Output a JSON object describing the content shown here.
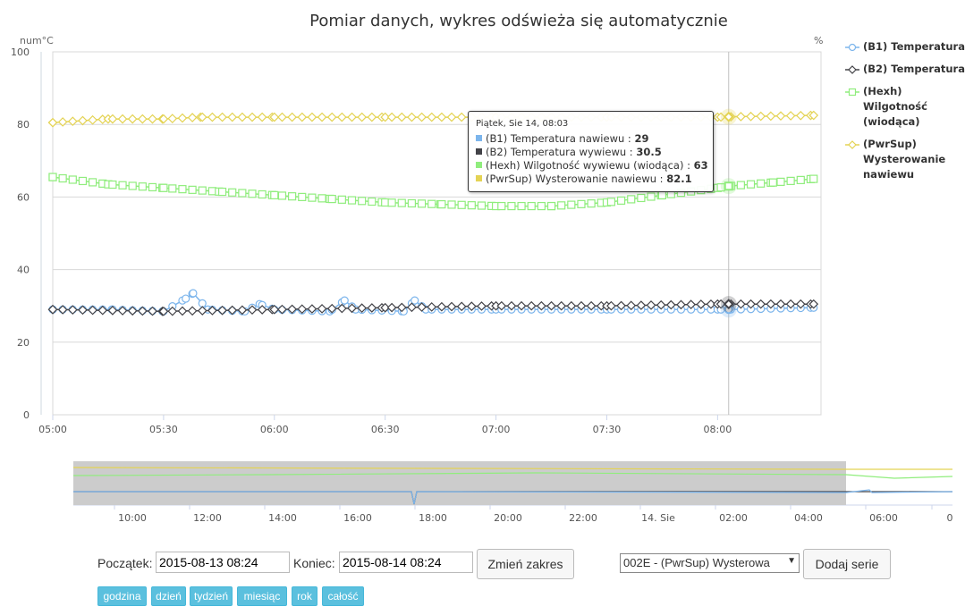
{
  "chart_data": {
    "type": "line",
    "title": "Pomiar danych, wykres odświeża się automatycznie",
    "ylabel_left": "num°C",
    "ylabel_right": "%",
    "ylim": [
      0,
      100
    ],
    "yticks": [
      0,
      20,
      40,
      60,
      80,
      100
    ],
    "x_start": "05:00",
    "x_end": "08:28",
    "xticks": [
      "05:00",
      "05:30",
      "06:00",
      "06:30",
      "07:00",
      "07:30",
      "08:00"
    ],
    "grid": true,
    "legend_position": "right",
    "crosshair_time": "08:03",
    "series": [
      {
        "name": "(B1) Temperatura nawiewu",
        "color": "#7cb5ec",
        "marker": "circle",
        "points": [
          [
            "05:00",
            29
          ],
          [
            "05:16",
            29
          ],
          [
            "05:30",
            28.5
          ],
          [
            "05:36",
            32
          ],
          [
            "05:38",
            33.5
          ],
          [
            "05:42",
            29
          ],
          [
            "05:52",
            28.5
          ],
          [
            "05:56",
            30.5
          ],
          [
            "06:00",
            29
          ],
          [
            "06:15",
            28.5
          ],
          [
            "06:19",
            31.5
          ],
          [
            "06:22",
            29
          ],
          [
            "06:35",
            28.5
          ],
          [
            "06:38",
            31.5
          ],
          [
            "06:41",
            29
          ],
          [
            "07:00",
            29
          ],
          [
            "07:30",
            29
          ],
          [
            "08:00",
            29
          ],
          [
            "08:03",
            29
          ],
          [
            "08:26",
            29.5
          ]
        ]
      },
      {
        "name": "(B2) Temperatura wywiewu",
        "color": "#434348",
        "marker": "diamond",
        "points": [
          [
            "05:00",
            29
          ],
          [
            "05:30",
            28.5
          ],
          [
            "06:00",
            29
          ],
          [
            "06:30",
            29.5
          ],
          [
            "07:00",
            30
          ],
          [
            "07:30",
            30
          ],
          [
            "08:00",
            30.5
          ],
          [
            "08:26",
            30.5
          ]
        ]
      },
      {
        "name": "(Hexh) Wilgotność wywiewu (wiodąca)",
        "color": "#90ed7d",
        "marker": "square",
        "points": [
          [
            "05:00",
            65.5
          ],
          [
            "05:15",
            63.5
          ],
          [
            "05:30",
            62.5
          ],
          [
            "05:45",
            61.5
          ],
          [
            "06:00",
            60.5
          ],
          [
            "06:15",
            59.5
          ],
          [
            "06:30",
            58.5
          ],
          [
            "06:45",
            58
          ],
          [
            "07:00",
            57.5
          ],
          [
            "07:15",
            57.5
          ],
          [
            "07:30",
            58.5
          ],
          [
            "07:45",
            60.5
          ],
          [
            "08:00",
            62.5
          ],
          [
            "08:03",
            63
          ],
          [
            "08:15",
            64
          ],
          [
            "08:26",
            65
          ]
        ]
      },
      {
        "name": "(PwrSup) Wysterowanie nawiewu",
        "color": "#e4d354",
        "marker": "diamond",
        "points": [
          [
            "05:00",
            80.5
          ],
          [
            "05:15",
            81.5
          ],
          [
            "05:30",
            81.5
          ],
          [
            "05:40",
            82
          ],
          [
            "06:00",
            82
          ],
          [
            "06:30",
            82
          ],
          [
            "07:00",
            82
          ],
          [
            "07:30",
            82
          ],
          [
            "08:00",
            82
          ],
          [
            "08:03",
            82.1
          ],
          [
            "08:26",
            82.5
          ]
        ]
      }
    ],
    "tooltip": {
      "header": "Piątek, Sie 14, 08:03",
      "rows": [
        {
          "label": "(B1) Temperatura nawiewu : ",
          "value": "29",
          "color": "#7cb5ec"
        },
        {
          "label": "(B2) Temperatura wywiewu : ",
          "value": "30.5",
          "color": "#434348"
        },
        {
          "label": "(Hexh) Wilgotność wywiewu (wiodąca) : ",
          "value": "63",
          "color": "#90ed7d"
        },
        {
          "label": "(PwrSup) Wysterowanie nawiewu : ",
          "value": "82.1",
          "color": "#e4d354"
        }
      ]
    },
    "navigator": {
      "xticks": [
        "10:00",
        "12:00",
        "14:00",
        "16:00",
        "18:00",
        "20:00",
        "22:00",
        "14. Sie",
        "02:00",
        "04:00",
        "06:00",
        "0"
      ],
      "selected_range": [
        "05:00",
        "08:28"
      ]
    }
  },
  "legend": {
    "items": [
      {
        "text": "(B1) Temperatura",
        "marker": "circle",
        "color": "#7cb5ec"
      },
      {
        "text": "(B2) Temperatura",
        "marker": "diamond",
        "color": "#434348"
      },
      {
        "text": "(Hexh) Wilgotność (wiodąca)",
        "marker": "square",
        "color": "#90ed7d"
      },
      {
        "text": "(PwrSup) Wysterowanie nawiewu",
        "marker": "diamond",
        "color": "#e4d354"
      }
    ]
  },
  "controls": {
    "start_label": "Początek:",
    "start_value": "2015-08-13 08:24",
    "end_label": "Koniec:",
    "end_value": "2015-08-14 08:24",
    "change_range_button": "Zmień zakres",
    "series_select_value": "002E - (PwrSup) Wysterowa",
    "add_series_button": "Dodaj serie",
    "range_buttons": [
      "godzina",
      "dzień",
      "tydzień",
      "miesiąc",
      "rok",
      "całość"
    ]
  }
}
